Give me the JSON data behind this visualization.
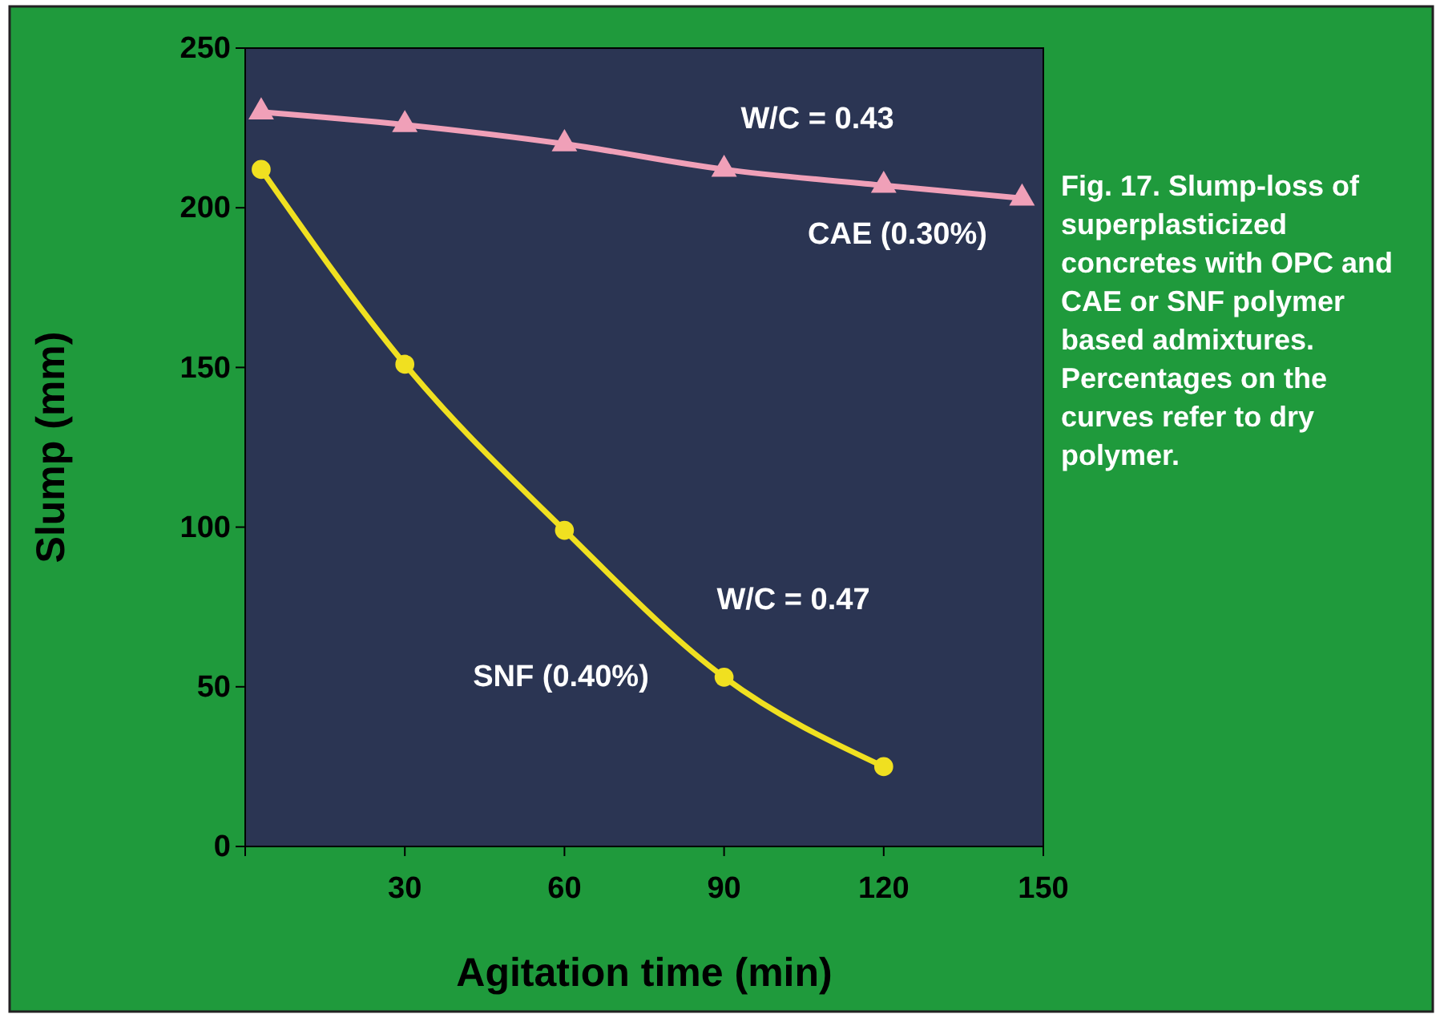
{
  "chart_data": {
    "type": "line",
    "xlabel": "Agitation time (min)",
    "ylabel": "Slump (mm)",
    "xlim": [
      0,
      150
    ],
    "xticks": [
      {
        "value": 0,
        "label": null
      },
      30,
      60,
      90,
      120,
      150
    ],
    "ylim": [
      0,
      250
    ],
    "yticks": [
      0,
      50,
      100,
      150,
      200,
      250
    ],
    "grid": false,
    "line_style": "solid",
    "series": [
      {
        "color": "#f0a0b8",
        "marker": "triangle",
        "x": [
          3,
          30,
          60,
          90,
          120,
          146
        ],
        "values": [
          230,
          226,
          220,
          212,
          207,
          203
        ]
      },
      {
        "color": "#f0e020",
        "marker": "circle",
        "x": [
          3,
          30,
          60,
          90,
          120
        ],
        "values": [
          212,
          151,
          99,
          53,
          25
        ]
      }
    ],
    "annotations": [
      "W/C = 0.43",
      "CAE (0.30%)",
      "W/C = 0.47",
      "SNF (0.40%)",
      "Fig. 17. Slump-loss of superplasticized concretes with OPC and CAE or SNF polymer based admixtures. Percentages on the curves refer to dry polymer."
    ]
  }
}
